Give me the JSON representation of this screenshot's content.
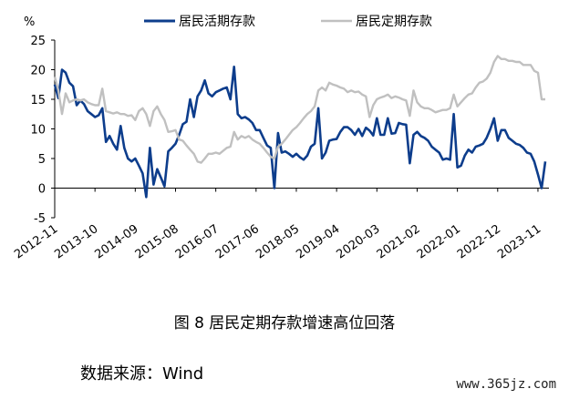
{
  "chart_data": {
    "type": "line",
    "ylabel": "%",
    "ylim": [
      -5,
      25
    ],
    "yticks": [
      -5,
      0,
      5,
      10,
      15,
      20,
      25
    ],
    "x_start": "2012-11",
    "x_end": "2024-02",
    "xticks": [
      "2012-11",
      "2013-10",
      "2014-09",
      "2015-08",
      "2016-07",
      "2017-06",
      "2018-05",
      "2019-04",
      "2020-03",
      "2021-02",
      "2022-01",
      "2022-12",
      "2023-11"
    ],
    "legend_position": "top",
    "series": [
      {
        "name": "居民活期存款",
        "color": "#0d3d8c",
        "points": [
          [
            "2012-11",
            17.5
          ],
          [
            "2012-12",
            15.2
          ],
          [
            "2013-01",
            20.0
          ],
          [
            "2013-02",
            19.5
          ],
          [
            "2013-03",
            17.8
          ],
          [
            "2013-04",
            17.2
          ],
          [
            "2013-05",
            14.0
          ],
          [
            "2013-06",
            14.8
          ],
          [
            "2013-07",
            14.2
          ],
          [
            "2013-08",
            13.0
          ],
          [
            "2013-09",
            12.5
          ],
          [
            "2013-10",
            12.0
          ],
          [
            "2013-11",
            12.3
          ],
          [
            "2013-12",
            13.5
          ],
          [
            "2014-01",
            7.8
          ],
          [
            "2014-02",
            8.8
          ],
          [
            "2014-03",
            7.5
          ],
          [
            "2014-04",
            6.5
          ],
          [
            "2014-05",
            10.5
          ],
          [
            "2014-06",
            6.8
          ],
          [
            "2014-07",
            5.0
          ],
          [
            "2014-08",
            4.5
          ],
          [
            "2014-09",
            5.0
          ],
          [
            "2014-10",
            3.8
          ],
          [
            "2014-11",
            2.5
          ],
          [
            "2014-12",
            -1.5
          ],
          [
            "2015-01",
            6.8
          ],
          [
            "2015-02",
            0.6
          ],
          [
            "2015-03",
            3.2
          ],
          [
            "2015-04",
            1.8
          ],
          [
            "2015-05",
            0.3
          ],
          [
            "2015-06",
            6.2
          ],
          [
            "2015-07",
            6.8
          ],
          [
            "2015-08",
            7.5
          ],
          [
            "2015-09",
            9.0
          ],
          [
            "2015-10",
            10.8
          ],
          [
            "2015-11",
            11.2
          ],
          [
            "2015-12",
            15.0
          ],
          [
            "2016-01",
            12.0
          ],
          [
            "2016-02",
            15.5
          ],
          [
            "2016-03",
            16.5
          ],
          [
            "2016-04",
            18.2
          ],
          [
            "2016-05",
            16.0
          ],
          [
            "2016-06",
            15.5
          ],
          [
            "2016-07",
            16.2
          ],
          [
            "2016-08",
            16.5
          ],
          [
            "2016-09",
            16.8
          ],
          [
            "2016-10",
            17.0
          ],
          [
            "2016-11",
            15.0
          ],
          [
            "2016-12",
            20.5
          ],
          [
            "2017-01",
            12.5
          ],
          [
            "2017-02",
            11.8
          ],
          [
            "2017-03",
            12.0
          ],
          [
            "2017-04",
            11.6
          ],
          [
            "2017-05",
            11.0
          ],
          [
            "2017-06",
            9.8
          ],
          [
            "2017-07",
            9.8
          ],
          [
            "2017-08",
            8.5
          ],
          [
            "2017-09",
            7.2
          ],
          [
            "2017-10",
            6.8
          ],
          [
            "2017-11",
            0.0
          ],
          [
            "2017-12",
            9.3
          ],
          [
            "2018-01",
            6.0
          ],
          [
            "2018-02",
            6.2
          ],
          [
            "2018-03",
            5.8
          ],
          [
            "2018-04",
            5.3
          ],
          [
            "2018-05",
            5.8
          ],
          [
            "2018-06",
            5.2
          ],
          [
            "2018-07",
            4.8
          ],
          [
            "2018-08",
            5.5
          ],
          [
            "2018-09",
            7.0
          ],
          [
            "2018-10",
            7.5
          ],
          [
            "2018-11",
            13.5
          ],
          [
            "2018-12",
            5.0
          ],
          [
            "2019-01",
            6.0
          ],
          [
            "2019-02",
            8.0
          ],
          [
            "2019-03",
            8.2
          ],
          [
            "2019-04",
            8.3
          ],
          [
            "2019-05",
            9.5
          ],
          [
            "2019-06",
            10.3
          ],
          [
            "2019-07",
            10.3
          ],
          [
            "2019-08",
            9.8
          ],
          [
            "2019-09",
            9.0
          ],
          [
            "2019-10",
            10.0
          ],
          [
            "2019-11",
            8.8
          ],
          [
            "2019-12",
            10.2
          ],
          [
            "2020-01",
            9.7
          ],
          [
            "2020-02",
            8.9
          ],
          [
            "2020-03",
            11.8
          ],
          [
            "2020-04",
            9.0
          ],
          [
            "2020-05",
            9.0
          ],
          [
            "2020-06",
            11.8
          ],
          [
            "2020-07",
            9.2
          ],
          [
            "2020-08",
            9.3
          ],
          [
            "2020-09",
            11.0
          ],
          [
            "2020-10",
            10.8
          ],
          [
            "2020-11",
            10.7
          ],
          [
            "2020-12",
            4.2
          ],
          [
            "2021-01",
            9.0
          ],
          [
            "2021-02",
            9.5
          ],
          [
            "2021-03",
            8.8
          ],
          [
            "2021-04",
            8.5
          ],
          [
            "2021-05",
            8.0
          ],
          [
            "2021-06",
            7.0
          ],
          [
            "2021-07",
            6.5
          ],
          [
            "2021-08",
            6.0
          ],
          [
            "2021-09",
            4.8
          ],
          [
            "2021-10",
            5.0
          ],
          [
            "2021-11",
            4.8
          ],
          [
            "2021-12",
            12.5
          ],
          [
            "2022-01",
            3.5
          ],
          [
            "2022-02",
            3.8
          ],
          [
            "2022-03",
            5.5
          ],
          [
            "2022-04",
            6.5
          ],
          [
            "2022-05",
            6.0
          ],
          [
            "2022-06",
            7.0
          ],
          [
            "2022-07",
            7.2
          ],
          [
            "2022-08",
            7.5
          ],
          [
            "2022-09",
            8.5
          ],
          [
            "2022-10",
            10.0
          ],
          [
            "2022-11",
            11.8
          ],
          [
            "2022-12",
            8.0
          ],
          [
            "2023-01",
            9.8
          ],
          [
            "2023-02",
            9.8
          ],
          [
            "2023-03",
            8.5
          ],
          [
            "2023-04",
            8.0
          ],
          [
            "2023-05",
            7.5
          ],
          [
            "2023-06",
            7.3
          ],
          [
            "2023-07",
            6.8
          ],
          [
            "2023-08",
            6.0
          ],
          [
            "2023-09",
            5.8
          ],
          [
            "2023-10",
            4.5
          ],
          [
            "2023-11",
            2.3
          ],
          [
            "2023-12",
            0.0
          ],
          [
            "2024-01",
            4.5
          ]
        ]
      },
      {
        "name": "居民定期存款",
        "color": "#c0c0c0",
        "points": [
          [
            "2012-11",
            18.8
          ],
          [
            "2012-12",
            16.5
          ],
          [
            "2013-01",
            12.5
          ],
          [
            "2013-02",
            16.0
          ],
          [
            "2013-03",
            14.5
          ],
          [
            "2013-04",
            14.8
          ],
          [
            "2013-05",
            15.0
          ],
          [
            "2013-06",
            14.8
          ],
          [
            "2013-07",
            15.0
          ],
          [
            "2013-08",
            14.5
          ],
          [
            "2013-09",
            14.2
          ],
          [
            "2013-10",
            14.0
          ],
          [
            "2013-11",
            14.0
          ],
          [
            "2013-12",
            16.8
          ],
          [
            "2014-01",
            13.0
          ],
          [
            "2014-02",
            12.8
          ],
          [
            "2014-03",
            12.6
          ],
          [
            "2014-04",
            12.8
          ],
          [
            "2014-05",
            12.5
          ],
          [
            "2014-06",
            12.5
          ],
          [
            "2014-07",
            12.2
          ],
          [
            "2014-08",
            12.3
          ],
          [
            "2014-09",
            11.5
          ],
          [
            "2014-10",
            13.0
          ],
          [
            "2014-11",
            13.5
          ],
          [
            "2014-12",
            12.5
          ],
          [
            "2015-01",
            10.5
          ],
          [
            "2015-02",
            13.0
          ],
          [
            "2015-03",
            13.8
          ],
          [
            "2015-04",
            12.5
          ],
          [
            "2015-05",
            11.5
          ],
          [
            "2015-06",
            9.5
          ],
          [
            "2015-07",
            9.6
          ],
          [
            "2015-08",
            9.8
          ],
          [
            "2015-09",
            8.2
          ],
          [
            "2015-10",
            8.0
          ],
          [
            "2015-11",
            7.2
          ],
          [
            "2015-12",
            6.5
          ],
          [
            "2016-01",
            5.8
          ],
          [
            "2016-02",
            4.5
          ],
          [
            "2016-03",
            4.3
          ],
          [
            "2016-04",
            5.0
          ],
          [
            "2016-05",
            5.8
          ],
          [
            "2016-06",
            5.8
          ],
          [
            "2016-07",
            6.0
          ],
          [
            "2016-08",
            5.8
          ],
          [
            "2016-09",
            6.3
          ],
          [
            "2016-10",
            6.8
          ],
          [
            "2016-11",
            7.0
          ],
          [
            "2016-12",
            9.5
          ],
          [
            "2017-01",
            8.2
          ],
          [
            "2017-02",
            8.8
          ],
          [
            "2017-03",
            8.5
          ],
          [
            "2017-04",
            8.8
          ],
          [
            "2017-05",
            8.2
          ],
          [
            "2017-06",
            7.8
          ],
          [
            "2017-07",
            7.5
          ],
          [
            "2017-08",
            6.8
          ],
          [
            "2017-09",
            6.0
          ],
          [
            "2017-10",
            5.3
          ],
          [
            "2017-11",
            5.0
          ],
          [
            "2017-12",
            7.0
          ],
          [
            "2018-01",
            7.5
          ],
          [
            "2018-02",
            8.2
          ],
          [
            "2018-03",
            9.0
          ],
          [
            "2018-04",
            9.8
          ],
          [
            "2018-05",
            10.3
          ],
          [
            "2018-06",
            11.0
          ],
          [
            "2018-07",
            11.8
          ],
          [
            "2018-08",
            12.5
          ],
          [
            "2018-09",
            13.0
          ],
          [
            "2018-10",
            13.8
          ],
          [
            "2018-11",
            16.5
          ],
          [
            "2018-12",
            17.0
          ],
          [
            "2019-01",
            16.5
          ],
          [
            "2019-02",
            17.8
          ],
          [
            "2019-03",
            17.5
          ],
          [
            "2019-04",
            17.3
          ],
          [
            "2019-05",
            17.0
          ],
          [
            "2019-06",
            16.8
          ],
          [
            "2019-07",
            16.2
          ],
          [
            "2019-08",
            16.5
          ],
          [
            "2019-09",
            16.2
          ],
          [
            "2019-10",
            16.3
          ],
          [
            "2019-11",
            15.8
          ],
          [
            "2019-12",
            15.5
          ],
          [
            "2020-01",
            12.0
          ],
          [
            "2020-02",
            14.0
          ],
          [
            "2020-03",
            15.0
          ],
          [
            "2020-04",
            15.3
          ],
          [
            "2020-05",
            15.5
          ],
          [
            "2020-06",
            15.8
          ],
          [
            "2020-07",
            15.2
          ],
          [
            "2020-08",
            15.5
          ],
          [
            "2020-09",
            15.3
          ],
          [
            "2020-10",
            15.0
          ],
          [
            "2020-11",
            14.8
          ],
          [
            "2020-12",
            12.2
          ],
          [
            "2021-01",
            16.5
          ],
          [
            "2021-02",
            14.5
          ],
          [
            "2021-03",
            13.8
          ],
          [
            "2021-04",
            13.5
          ],
          [
            "2021-05",
            13.5
          ],
          [
            "2021-06",
            13.2
          ],
          [
            "2021-07",
            12.8
          ],
          [
            "2021-08",
            13.0
          ],
          [
            "2021-09",
            13.2
          ],
          [
            "2021-10",
            13.2
          ],
          [
            "2021-11",
            13.5
          ],
          [
            "2021-12",
            15.8
          ],
          [
            "2022-01",
            13.8
          ],
          [
            "2022-02",
            14.5
          ],
          [
            "2022-03",
            15.2
          ],
          [
            "2022-04",
            15.8
          ],
          [
            "2022-05",
            16.0
          ],
          [
            "2022-06",
            17.0
          ],
          [
            "2022-07",
            17.8
          ],
          [
            "2022-08",
            18.0
          ],
          [
            "2022-09",
            18.5
          ],
          [
            "2022-10",
            19.5
          ],
          [
            "2022-11",
            21.3
          ],
          [
            "2022-12",
            22.3
          ],
          [
            "2023-01",
            21.8
          ],
          [
            "2023-02",
            21.8
          ],
          [
            "2023-03",
            21.5
          ],
          [
            "2023-04",
            21.5
          ],
          [
            "2023-05",
            21.3
          ],
          [
            "2023-06",
            21.3
          ],
          [
            "2023-07",
            20.8
          ],
          [
            "2023-08",
            20.8
          ],
          [
            "2023-09",
            20.8
          ],
          [
            "2023-10",
            19.8
          ],
          [
            "2023-11",
            19.5
          ],
          [
            "2023-12",
            15.0
          ],
          [
            "2024-01",
            15.0
          ]
        ]
      }
    ]
  },
  "caption": "图 8 居民定期存款增速高位回落",
  "source": "数据来源：Wind",
  "watermark": "www.365jz.com"
}
